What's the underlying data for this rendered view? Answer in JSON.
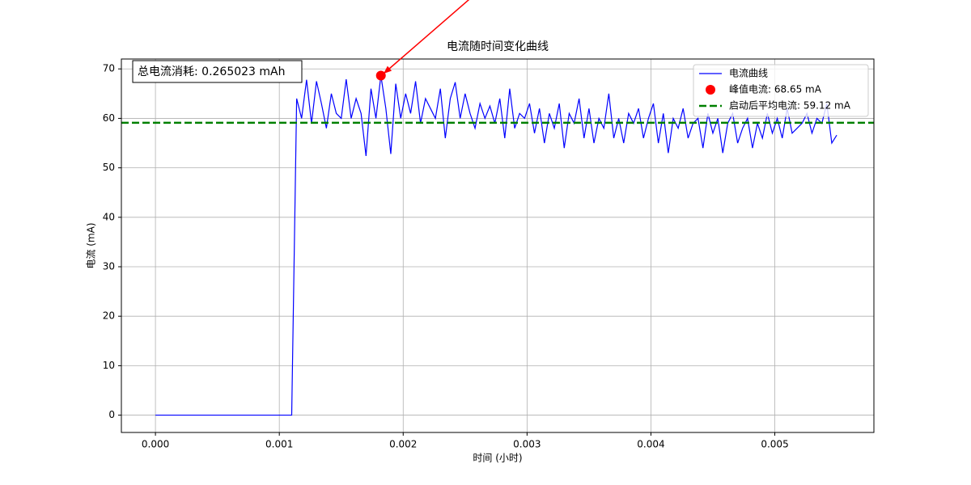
{
  "chart_data": {
    "type": "line",
    "title": "电流随时间变化曲线",
    "xlabel": "时间 (小时)",
    "ylabel": "电流 (mA)",
    "annotation": "总电流消耗: 0.265023 mAh",
    "xlim": [
      -0.000275,
      0.0058
    ],
    "ylim": [
      -3.5,
      72
    ],
    "xticks": [
      {
        "value": 0,
        "label": "0.000"
      },
      {
        "value": 0.001,
        "label": "0.001"
      },
      {
        "value": 0.002,
        "label": "0.002"
      },
      {
        "value": 0.003,
        "label": "0.003"
      },
      {
        "value": 0.004,
        "label": "0.004"
      },
      {
        "value": 0.005,
        "label": "0.005"
      }
    ],
    "yticks": [
      0,
      10,
      20,
      30,
      40,
      50,
      60,
      70
    ],
    "grid": true,
    "legend": "upper right",
    "series": [
      {
        "name": "电流曲线",
        "type": "line",
        "color": "#0000ff",
        "x": [
          0,
          0.0005,
          0.0011,
          0.00114,
          0.00118,
          0.00122,
          0.00126,
          0.0013,
          0.00134,
          0.00138,
          0.00142,
          0.00146,
          0.0015,
          0.00154,
          0.00158,
          0.00162,
          0.00166,
          0.0017,
          0.00174,
          0.00178,
          0.00182,
          0.00186,
          0.0019,
          0.00194,
          0.00198,
          0.00202,
          0.00206,
          0.0021,
          0.00214,
          0.00218,
          0.00222,
          0.00226,
          0.0023,
          0.00234,
          0.00238,
          0.00242,
          0.00246,
          0.0025,
          0.00254,
          0.00258,
          0.00262,
          0.00266,
          0.0027,
          0.00274,
          0.00278,
          0.00282,
          0.00286,
          0.0029,
          0.00294,
          0.00298,
          0.00302,
          0.00306,
          0.0031,
          0.00314,
          0.00318,
          0.00322,
          0.00326,
          0.0033,
          0.00334,
          0.00338,
          0.00342,
          0.00346,
          0.0035,
          0.00354,
          0.00358,
          0.00362,
          0.00366,
          0.0037,
          0.00374,
          0.00378,
          0.00382,
          0.00386,
          0.0039,
          0.00394,
          0.00398,
          0.00402,
          0.00406,
          0.0041,
          0.00414,
          0.00418,
          0.00422,
          0.00426,
          0.0043,
          0.00434,
          0.00438,
          0.00442,
          0.00446,
          0.0045,
          0.00454,
          0.00458,
          0.00462,
          0.00466,
          0.0047,
          0.00474,
          0.00478,
          0.00482,
          0.00486,
          0.0049,
          0.00494,
          0.00498,
          0.00502,
          0.00506,
          0.0051,
          0.00514,
          0.00518,
          0.00522,
          0.00526,
          0.0053,
          0.00534,
          0.00538,
          0.00542,
          0.00546,
          0.0055
        ],
        "values": [
          0,
          0,
          0,
          64,
          60,
          67.8,
          59,
          67.5,
          63,
          58,
          65,
          61,
          60,
          67.9,
          60,
          64,
          61,
          52.4,
          66,
          60,
          68.65,
          62,
          52.8,
          67,
          60,
          65,
          61,
          67.5,
          59,
          64,
          62,
          60,
          66,
          56,
          64,
          67.3,
          60,
          65,
          61,
          58,
          63,
          60,
          62.5,
          59,
          64,
          56,
          66,
          58,
          61,
          60,
          63,
          57,
          62,
          55,
          61,
          58,
          63,
          54,
          61,
          59,
          64,
          56,
          62,
          55,
          60,
          58,
          65,
          56,
          60,
          55,
          61,
          59,
          62,
          56,
          60,
          63,
          55,
          61,
          53,
          60,
          58,
          62,
          56,
          59,
          60,
          54,
          61,
          57,
          60,
          53,
          59,
          61,
          55,
          58,
          60,
          54,
          59,
          56,
          61,
          57,
          60,
          56,
          62,
          57,
          58,
          59,
          61,
          57,
          60,
          59,
          63,
          55,
          56.6
        ]
      },
      {
        "name": "峰值电流: 68.65 mA",
        "type": "scatter",
        "color": "#ff0000",
        "x": [
          0.00182
        ],
        "values": [
          68.65
        ]
      },
      {
        "name": "启动后平均电流: 59.12 mA",
        "type": "hline",
        "color": "#008000",
        "values": [
          59.12
        ]
      }
    ]
  }
}
